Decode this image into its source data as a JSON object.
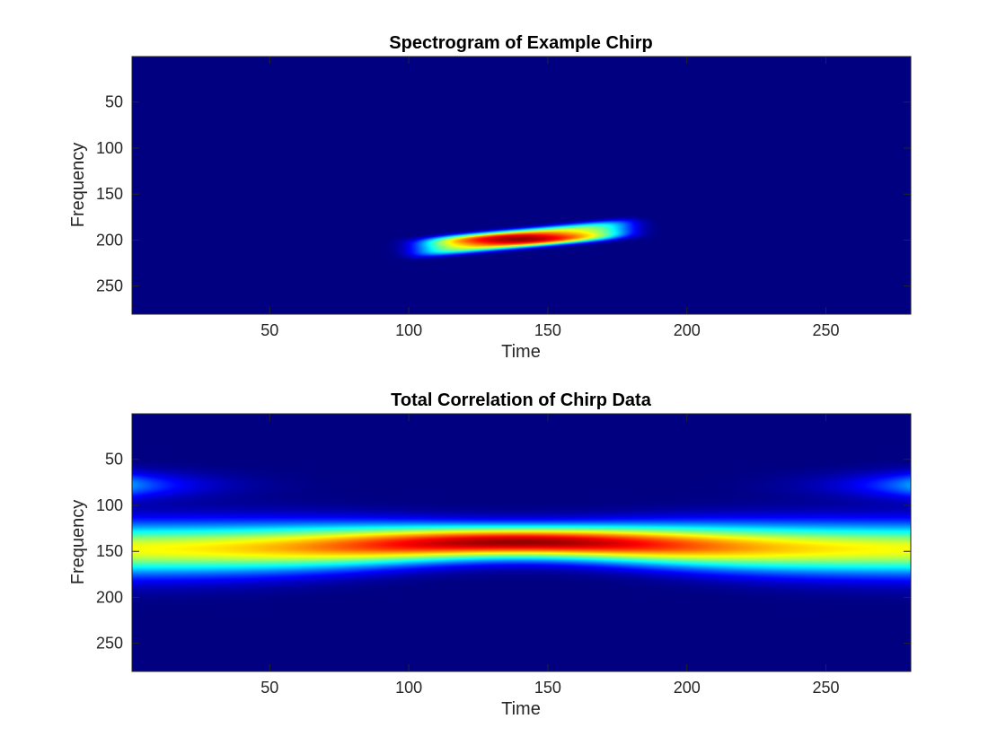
{
  "figure": {
    "background": "#ffffff",
    "colormap": "jet",
    "background_color": "#00008f"
  },
  "chart_data": [
    {
      "type": "heatmap",
      "title": "Spectrogram of Example Chirp",
      "xlabel": "Time",
      "ylabel": "Frequency",
      "xlim": [
        0.5,
        280.5
      ],
      "ylim": [
        0.5,
        280.5
      ],
      "y_reversed": true,
      "xticks": [
        50,
        100,
        150,
        200,
        250
      ],
      "yticks": [
        50,
        100,
        150,
        200,
        250
      ],
      "xtick_labels": [
        "50",
        "100",
        "150",
        "200",
        "250"
      ],
      "ytick_labels": [
        "50",
        "100",
        "150",
        "200",
        "250"
      ],
      "grid": false,
      "features": [
        {
          "shape": "tilted-blob",
          "x_range": [
            102,
            180
          ],
          "y_at_start": 209,
          "y_at_end": 187,
          "half_thickness": 10,
          "peak_x": 140,
          "peak_y": 199,
          "peak_value": 1.0
        }
      ]
    },
    {
      "type": "heatmap",
      "title": "Total Correlation of Chirp Data",
      "xlabel": "Time",
      "ylabel": "Frequency",
      "xlim": [
        0.5,
        280.5
      ],
      "ylim": [
        0.5,
        280.5
      ],
      "y_reversed": true,
      "xticks": [
        50,
        100,
        150,
        200,
        250
      ],
      "yticks": [
        50,
        100,
        150,
        200,
        250
      ],
      "xtick_labels": [
        "50",
        "100",
        "150",
        "200",
        "250"
      ],
      "ytick_labels": [
        "50",
        "100",
        "150",
        "200",
        "250"
      ],
      "grid": false,
      "features": [
        {
          "shape": "horizontal-band",
          "x_range": [
            0.5,
            280.5
          ],
          "center_y_edges": 148,
          "center_y_middle": 140,
          "half_width_edges": 35,
          "half_width_middle": 22,
          "peak_x": 140,
          "peak_y": 140,
          "peak_value": 1.0,
          "edge_value": 0.62
        }
      ]
    }
  ]
}
